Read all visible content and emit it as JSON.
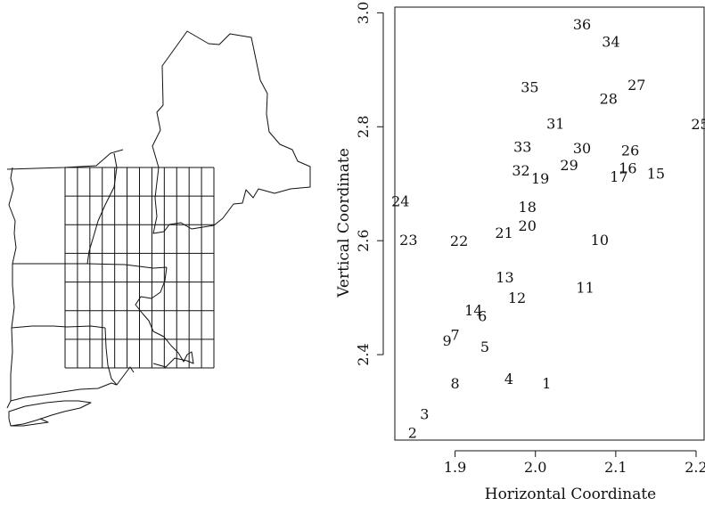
{
  "map": {
    "grid": {
      "columns": 12,
      "rows": 7
    }
  },
  "chart_data": {
    "type": "scatter",
    "xlabel": "Horizontal Coordinate",
    "ylabel": "Vertical Coordinate",
    "xlim": [
      1.825,
      2.21
    ],
    "ylim": [
      2.25,
      3.01
    ],
    "xticks": [
      1.9,
      2.0,
      2.1,
      2.2
    ],
    "yticks": [
      2.4,
      2.6,
      2.8,
      3.0
    ],
    "xtick_labels": [
      "1.9",
      "2.0",
      "2.1",
      "2.2"
    ],
    "ytick_labels": [
      "2.4",
      "2.6",
      "2.8",
      "3.0"
    ],
    "marker": "label",
    "grid": false,
    "points": [
      {
        "label": "1",
        "x": 2.014,
        "y": 2.35
      },
      {
        "label": "2",
        "x": 1.847,
        "y": 2.263
      },
      {
        "label": "3",
        "x": 1.862,
        "y": 2.296
      },
      {
        "label": "4",
        "x": 1.967,
        "y": 2.358
      },
      {
        "label": "5",
        "x": 1.937,
        "y": 2.414
      },
      {
        "label": "6",
        "x": 1.934,
        "y": 2.468
      },
      {
        "label": "7",
        "x": 1.9,
        "y": 2.435
      },
      {
        "label": "8",
        "x": 1.9,
        "y": 2.35
      },
      {
        "label": "9",
        "x": 1.89,
        "y": 2.425
      },
      {
        "label": "10",
        "x": 2.08,
        "y": 2.602
      },
      {
        "label": "11",
        "x": 2.062,
        "y": 2.518
      },
      {
        "label": "12",
        "x": 1.977,
        "y": 2.5
      },
      {
        "label": "13",
        "x": 1.962,
        "y": 2.536
      },
      {
        "label": "14",
        "x": 1.923,
        "y": 2.478
      },
      {
        "label": "15",
        "x": 2.15,
        "y": 2.718
      },
      {
        "label": "16",
        "x": 2.115,
        "y": 2.728
      },
      {
        "label": "17",
        "x": 2.104,
        "y": 2.713
      },
      {
        "label": "18",
        "x": 1.99,
        "y": 2.66
      },
      {
        "label": "19",
        "x": 2.006,
        "y": 2.71
      },
      {
        "label": "20",
        "x": 1.99,
        "y": 2.627
      },
      {
        "label": "21",
        "x": 1.961,
        "y": 2.614
      },
      {
        "label": "22",
        "x": 1.905,
        "y": 2.6
      },
      {
        "label": "23",
        "x": 1.842,
        "y": 2.602
      },
      {
        "label": "24",
        "x": 1.832,
        "y": 2.67
      },
      {
        "label": "25",
        "x": 2.205,
        "y": 2.805
      },
      {
        "label": "26",
        "x": 2.118,
        "y": 2.759
      },
      {
        "label": "27",
        "x": 2.126,
        "y": 2.874
      },
      {
        "label": "28",
        "x": 2.091,
        "y": 2.85
      },
      {
        "label": "29",
        "x": 2.042,
        "y": 2.733
      },
      {
        "label": "30",
        "x": 2.058,
        "y": 2.763
      },
      {
        "label": "31",
        "x": 2.025,
        "y": 2.806
      },
      {
        "label": "32",
        "x": 1.982,
        "y": 2.724
      },
      {
        "label": "33",
        "x": 1.984,
        "y": 2.765
      },
      {
        "label": "34",
        "x": 2.094,
        "y": 2.95
      },
      {
        "label": "35",
        "x": 1.993,
        "y": 2.87
      },
      {
        "label": "36",
        "x": 2.058,
        "y": 2.98
      }
    ]
  }
}
